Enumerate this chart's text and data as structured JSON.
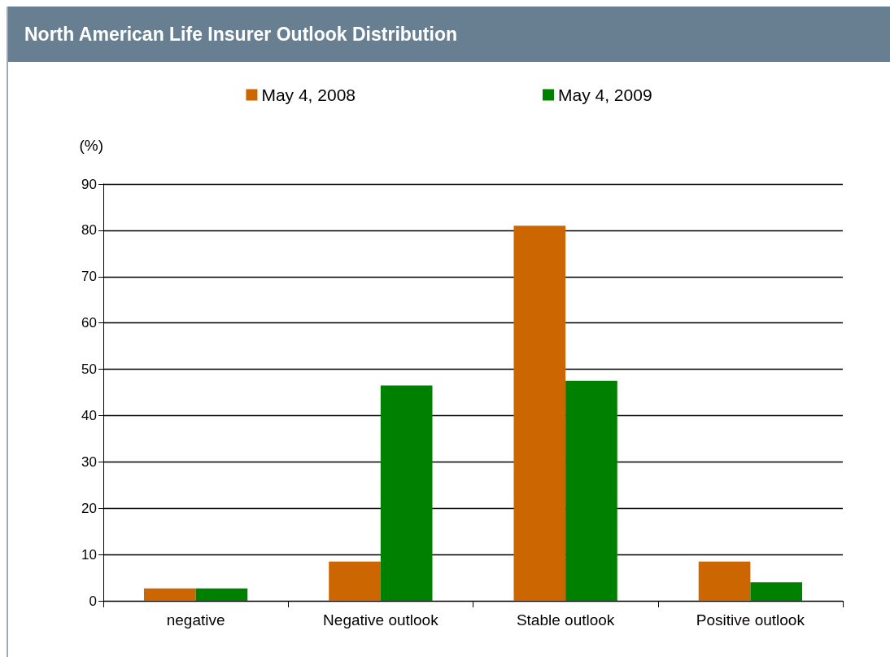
{
  "chart_data": {
    "type": "bar",
    "title": "North American Life Insurer Outlook Distribution",
    "ylabel": "(%)",
    "categories": [
      "negative",
      "Negative outlook",
      "Stable outlook",
      "Positive outlook"
    ],
    "series": [
      {
        "name": "May 4, 2008",
        "color": "#cc6600",
        "values": [
          2.7,
          8.5,
          81,
          8.5
        ]
      },
      {
        "name": "May 4, 2009",
        "color": "#008000",
        "values": [
          2.7,
          46.5,
          47.5,
          4
        ]
      }
    ],
    "ylim": [
      0,
      90
    ],
    "yticks": [
      0,
      10,
      20,
      30,
      40,
      50,
      60,
      70,
      80,
      90
    ],
    "grid": "y",
    "legend": "top"
  }
}
